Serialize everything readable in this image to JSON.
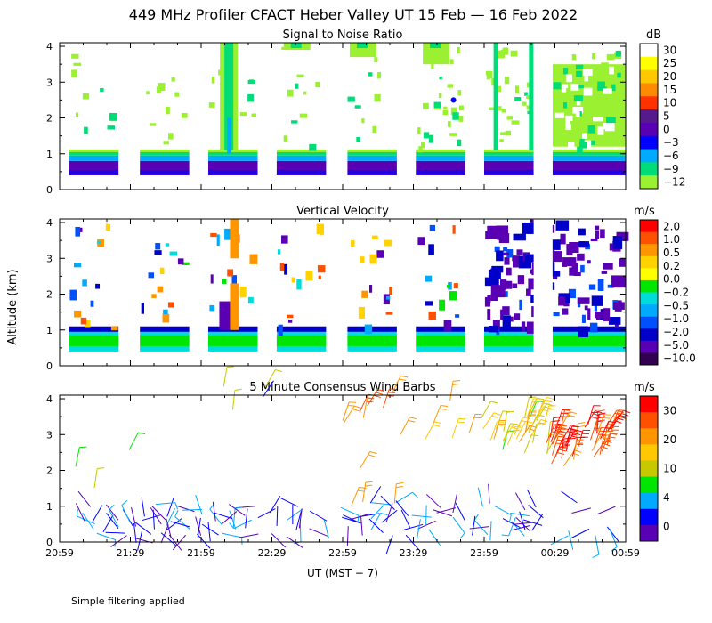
{
  "figure": {
    "title": "449 MHz Profiler CFACT Heber Valley UT 15 Feb — 16 Feb 2022",
    "ylabel": "Altitude (km)",
    "xlabel": "UT  (MST − 7)",
    "footnote": "Simple filtering applied"
  },
  "chart_data": [
    {
      "type": "heatmap",
      "title": "Signal to Noise Ratio",
      "unit": "dB",
      "x_ticks": [
        "20:59",
        "21:29",
        "21:59",
        "22:29",
        "22:59",
        "23:29",
        "23:59",
        "00:29",
        "00:59"
      ],
      "y_ticks": [
        "0",
        "1",
        "2",
        "3",
        "4"
      ],
      "ylim": [
        0,
        4
      ],
      "colorbar_labels": [
        "30",
        "25",
        "20",
        "15",
        "10",
        "5",
        "0",
        "−3",
        "−6",
        "−9",
        "−12"
      ],
      "colorbar_colors": [
        "#ffffff",
        "#ffff00",
        "#ffc800",
        "#ff8c00",
        "#ff3200",
        "#551a8b",
        "#5a00b4",
        "#0000ff",
        "#00aaff",
        "#00dc78",
        "#9cf032"
      ],
      "data_segments": [
        {
          "start": "21:03",
          "end": "21:24"
        },
        {
          "start": "21:33",
          "end": "21:54"
        },
        {
          "start": "22:02",
          "end": "22:23"
        },
        {
          "start": "22:31",
          "end": "22:52"
        },
        {
          "start": "23:01",
          "end": "23:22"
        },
        {
          "start": "23:30",
          "end": "23:51"
        },
        {
          "start": "23:59",
          "end": "00:20"
        },
        {
          "start": "00:28",
          "end": "00:59"
        }
      ],
      "layers": [
        {
          "top_km": 1.1,
          "bottom_km": 0.95,
          "color": "green"
        },
        {
          "top_km": 0.95,
          "bottom_km": 0.8,
          "color": "cyan"
        },
        {
          "top_km": 0.8,
          "bottom_km": 0.4,
          "color": "purple-blue"
        }
      ]
    },
    {
      "type": "heatmap",
      "title": "Vertical Velocity",
      "unit": "m/s",
      "x_ticks": [
        "20:59",
        "21:29",
        "21:59",
        "22:29",
        "22:59",
        "23:29",
        "23:59",
        "00:29",
        "00:59"
      ],
      "y_ticks": [
        "0",
        "1",
        "2",
        "3",
        "4"
      ],
      "ylim": [
        0,
        4
      ],
      "colorbar_labels": [
        "2.0",
        "1.0",
        "0.5",
        "0.2",
        "0.0",
        "−0.2",
        "−0.5",
        "−1.0",
        "−2.0",
        "−5.0",
        "−10.0"
      ],
      "colorbar_colors": [
        "#ff0000",
        "#ff5000",
        "#ff9600",
        "#ffd200",
        "#ffff00",
        "#00e600",
        "#00dcdc",
        "#00aaff",
        "#0050ff",
        "#0000c8",
        "#5a00b4",
        "#320050"
      ]
    },
    {
      "type": "scatter",
      "title": "5 Minute Consensus Wind Barbs",
      "unit": "m/s",
      "x_ticks": [
        "20:59",
        "21:29",
        "21:59",
        "22:29",
        "22:59",
        "23:29",
        "23:59",
        "00:29",
        "00:59"
      ],
      "y_ticks": [
        "0",
        "1",
        "2",
        "3",
        "4"
      ],
      "ylim": [
        0,
        4
      ],
      "colorbar_labels": [
        "30",
        "20",
        "10",
        "4",
        "0"
      ],
      "colorbar_colors": [
        "#ff0000",
        "#ff5000",
        "#ff9600",
        "#ffc800",
        "#c8c800",
        "#00e600",
        "#00aaff",
        "#0000ff",
        "#5a00b4"
      ],
      "speed_range_ms": [
        0,
        35
      ]
    }
  ]
}
